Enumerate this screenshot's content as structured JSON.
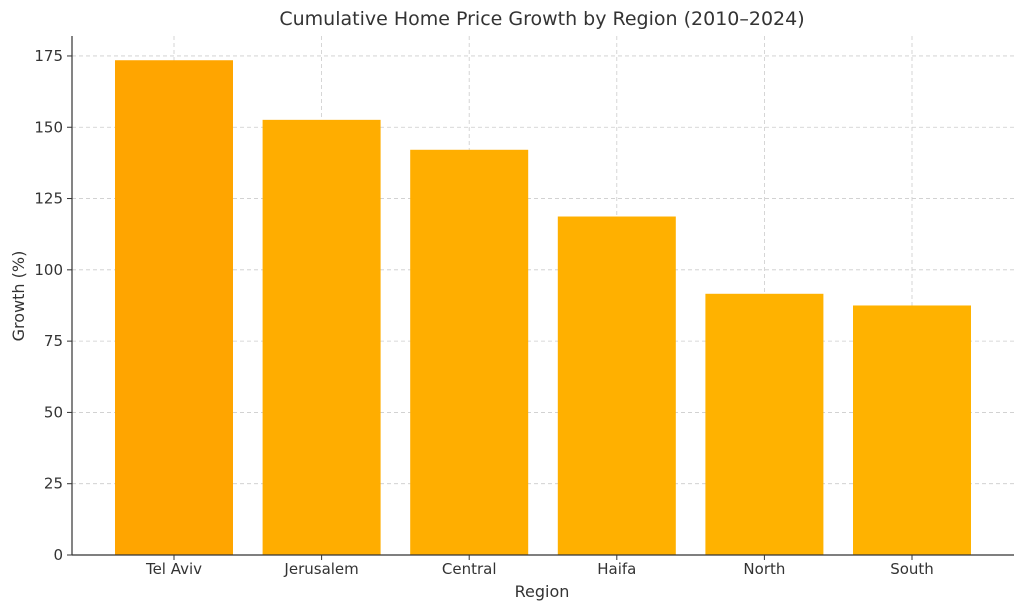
{
  "chart_data": {
    "type": "bar",
    "title": "Cumulative Home Price Growth by Region (2010–2024)",
    "xlabel": "Region",
    "ylabel": "Growth (%)",
    "categories": [
      "Tel Aviv",
      "Jerusalem",
      "Central",
      "Haifa",
      "North",
      "South"
    ],
    "values": [
      173.5,
      152.6,
      142.1,
      118.7,
      91.6,
      87.5
    ],
    "ylim": [
      0,
      182
    ],
    "yticks": [
      0,
      25,
      50,
      75,
      100,
      125,
      150,
      175
    ],
    "grid": true,
    "colors": [
      "#FFA500",
      "#FFAD00",
      "#FFAE00",
      "#FFB000",
      "#FFB200",
      "#FFB200"
    ]
  }
}
